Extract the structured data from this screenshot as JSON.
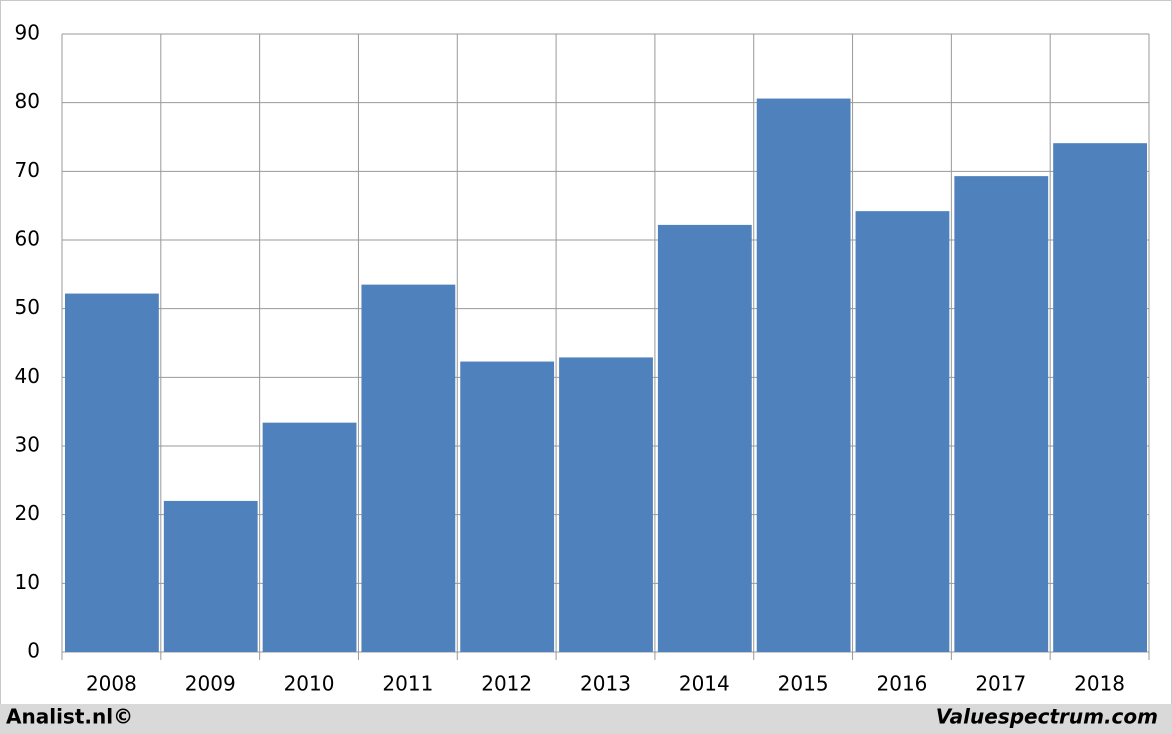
{
  "chart_data": {
    "type": "bar",
    "categories": [
      "2008",
      "2009",
      "2010",
      "2011",
      "2012",
      "2013",
      "2014",
      "2015",
      "2016",
      "2017",
      "2018"
    ],
    "values": [
      52.2,
      22,
      33.4,
      53.5,
      42.3,
      42.9,
      62.2,
      80.6,
      64.2,
      69.3,
      74.1
    ],
    "color": "#4f81bd",
    "ylim": [
      0,
      90
    ],
    "yticks": [
      0,
      10,
      20,
      30,
      40,
      50,
      60,
      70,
      80,
      90
    ],
    "grid": true,
    "credits": {
      "left": "Analist.nl©",
      "right": "Valuespectrum.com"
    }
  }
}
